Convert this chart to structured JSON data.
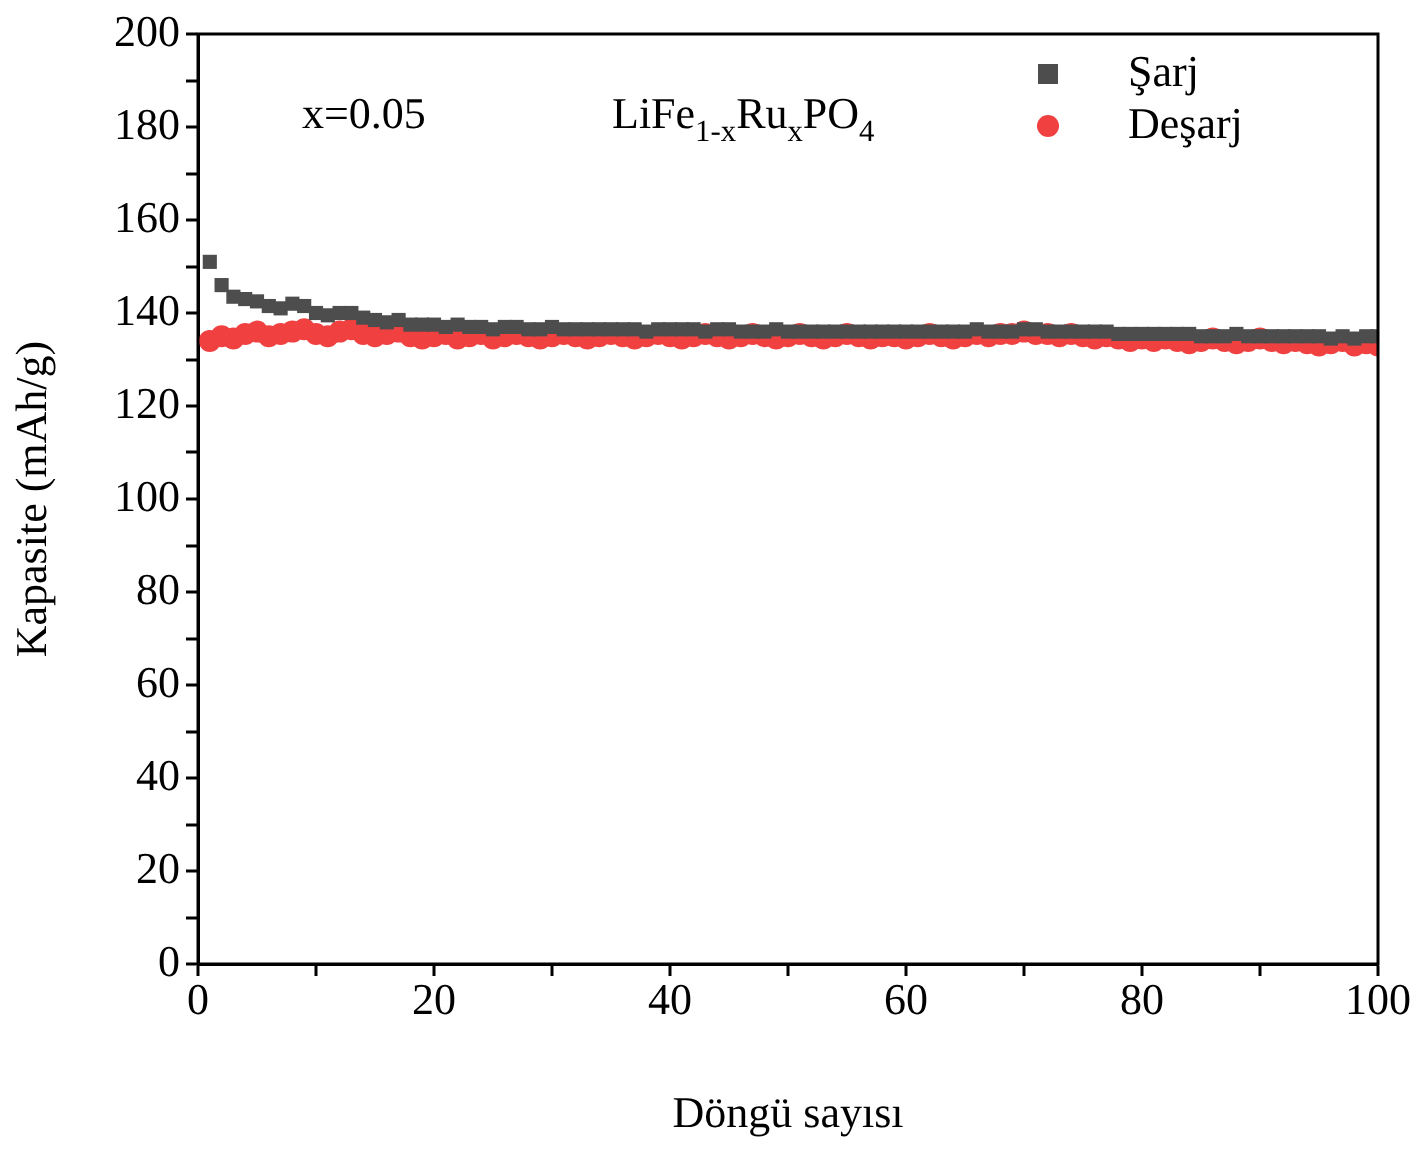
{
  "chart_data": {
    "type": "scatter",
    "xlabel": "Döngü sayısı",
    "ylabel": "Kapasite (mAh/g)",
    "annotations": [
      "x=0.05",
      "LiFe$_{1-x}$Ru$_{x}$PO$_{4}$"
    ],
    "x": [
      1,
      2,
      3,
      4,
      5,
      6,
      7,
      8,
      9,
      10,
      11,
      12,
      13,
      14,
      15,
      16,
      17,
      18,
      19,
      20,
      21,
      22,
      23,
      24,
      25,
      26,
      27,
      28,
      29,
      30,
      31,
      32,
      33,
      34,
      35,
      36,
      37,
      38,
      39,
      40,
      41,
      42,
      43,
      44,
      45,
      46,
      47,
      48,
      49,
      50,
      51,
      52,
      53,
      54,
      55,
      56,
      57,
      58,
      59,
      60,
      61,
      62,
      63,
      64,
      65,
      66,
      67,
      68,
      69,
      70,
      71,
      72,
      73,
      74,
      75,
      76,
      77,
      78,
      79,
      80,
      81,
      82,
      83,
      84,
      85,
      86,
      87,
      88,
      89,
      90,
      91,
      92,
      93,
      94,
      95,
      96,
      97,
      98,
      99,
      100
    ],
    "series": [
      {
        "name": "Şarj",
        "color": "#4d4d4d",
        "marker": "square",
        "values": [
          151,
          146,
          143.5,
          143,
          142.5,
          141.5,
          141,
          142,
          141.5,
          140,
          139.5,
          140,
          140,
          139,
          138.5,
          138,
          138.5,
          137.5,
          137.5,
          137.5,
          137,
          137.5,
          137,
          137,
          136.5,
          137,
          137,
          136.5,
          136.5,
          137,
          136.5,
          136.5,
          136.5,
          136.5,
          136.5,
          136.5,
          136.5,
          136,
          136.5,
          136.5,
          136.5,
          136.5,
          136,
          136.5,
          136.5,
          136,
          136,
          136,
          136.5,
          136,
          136,
          136,
          136,
          136,
          136,
          136,
          136,
          136,
          136,
          136,
          136,
          136,
          136,
          136,
          136,
          136.5,
          136,
          136,
          136,
          136.5,
          136.5,
          136,
          136,
          136,
          136,
          136,
          136,
          135.5,
          135.5,
          135.5,
          135.5,
          135.5,
          135.5,
          135.5,
          135,
          135,
          135,
          135.5,
          135,
          135,
          135,
          135,
          135,
          135,
          135,
          134.5,
          135,
          134.5,
          135,
          135
        ]
      },
      {
        "name": "Deşarj",
        "color": "#f04040",
        "marker": "circle",
        "values": [
          134,
          135,
          134.5,
          135.5,
          136,
          135,
          135.5,
          136,
          136.5,
          135.5,
          135,
          136,
          136.5,
          135.5,
          135,
          135.5,
          136,
          135,
          134.5,
          135,
          135.5,
          134.5,
          135,
          135.5,
          134.5,
          135,
          135.5,
          135,
          134.5,
          135,
          135.5,
          135,
          134.5,
          135,
          135.5,
          135,
          134.5,
          135,
          135.5,
          135,
          134.5,
          135,
          135.5,
          135,
          134.5,
          135,
          135.5,
          135,
          134.5,
          135,
          135.5,
          135,
          134.5,
          135,
          135.5,
          135,
          134.5,
          135,
          135,
          134.5,
          135,
          135.5,
          135,
          134.5,
          135,
          135.5,
          135,
          135.5,
          135.5,
          136,
          135.5,
          135.5,
          135,
          135.5,
          135,
          134.5,
          135,
          134.5,
          134,
          134.5,
          134,
          134.5,
          134,
          133.5,
          134,
          134.5,
          134,
          133.5,
          134,
          134.5,
          134,
          133.5,
          134,
          133.5,
          133,
          133.5,
          134,
          133,
          133.5,
          133
        ]
      }
    ],
    "xlim": [
      0,
      100
    ],
    "xticks": [
      0,
      {
        "value": 10,
        "label": null
      },
      20,
      {
        "value": 30,
        "label": null
      },
      40,
      {
        "value": 50,
        "label": null
      },
      60,
      {
        "value": 70,
        "label": null
      },
      80,
      {
        "value": 90,
        "label": null
      },
      100
    ],
    "ylim": [
      0,
      200
    ],
    "yticks": [
      0,
      {
        "value": 10,
        "label": null
      },
      20,
      {
        "value": 30,
        "label": null
      },
      40,
      {
        "value": 50,
        "label": null
      },
      60,
      {
        "value": 70,
        "label": null
      },
      80,
      {
        "value": 90,
        "label": null
      },
      100,
      {
        "value": 110,
        "label": null
      },
      120,
      {
        "value": 130,
        "label": null
      },
      140,
      {
        "value": 150,
        "label": null
      },
      160,
      {
        "value": 170,
        "label": null
      },
      180,
      {
        "value": 190,
        "label": null
      },
      200
    ],
    "grid": false,
    "legend": "top right"
  }
}
